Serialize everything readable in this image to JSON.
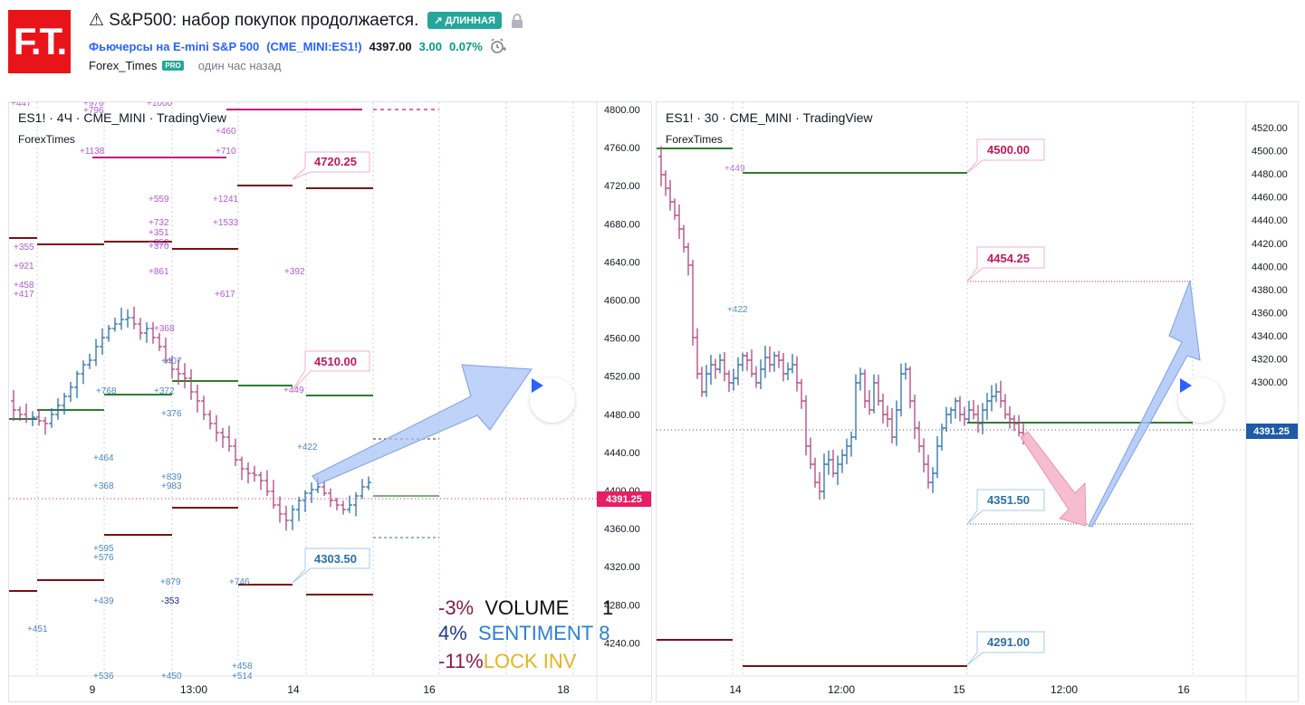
{
  "header": {
    "logo_text": "F.T.",
    "title": "⚠ S&P500: набор покупок продолжается.",
    "badge": "↗ ДЛИННАЯ",
    "symbol_name": "Фьючерсы на E-mini S&P 500",
    "symbol_code": "(CME_MINI:ES1!)",
    "price": "4397.00",
    "change": "3.00",
    "change_pct": "0.07%",
    "author": "Forex_Times",
    "author_badge": "PRO",
    "published": "один час назад"
  },
  "left_chart": {
    "title": "ES1! · 4Ч · CME_MINI · TradingView",
    "subtitle": "ForexTimes",
    "y_ticks": [
      "4800.00",
      "4760.00",
      "4720.00",
      "4680.00",
      "4640.00",
      "4600.00",
      "4560.00",
      "4520.00",
      "4480.00",
      "4440.00",
      "4400.00",
      "4360.00",
      "4320.00",
      "4280.00",
      "4240.00"
    ],
    "x_ticks": [
      "9",
      "13:00",
      "14",
      "16",
      "18"
    ],
    "price_tag": "4391.25",
    "callouts": [
      "4720.25",
      "4510.00",
      "4303.50"
    ],
    "legend": [
      {
        "pct": "-3%",
        "label": "VOLUME",
        "extra": "1"
      },
      {
        "pct": "4%",
        "label": "SENTIMENT",
        "extra": "8"
      },
      {
        "pct": "-11%",
        "label": "LOCK INV",
        "extra": ""
      }
    ],
    "annotations_pink": [
      "+447",
      "+976",
      "+796",
      "+1000",
      "+460",
      "+1138",
      "+710",
      "+559",
      "+1241",
      "+732",
      "+351",
      "+352",
      "+370",
      "+1533",
      "+355",
      "+921",
      "+861",
      "+392",
      "+458",
      "+417",
      "+617",
      "+368",
      "+449"
    ],
    "annotations_blue": [
      "+407",
      "+768",
      "+372",
      "+376",
      "+422",
      "+464",
      "+839",
      "+983",
      "+368",
      "+595",
      "+576",
      "+879",
      "+746",
      "+439",
      "-353",
      "+451",
      "+458",
      "+514",
      "+536",
      "+450"
    ]
  },
  "right_chart": {
    "title": "ES1! · 30 · CME_MINI · TradingView",
    "subtitle": "ForexTimes",
    "y_ticks": [
      "4520.00",
      "4500.00",
      "4480.00",
      "4460.00",
      "4440.00",
      "4420.00",
      "4400.00",
      "4380.00",
      "4360.00",
      "4340.00",
      "4320.00",
      "4300.00"
    ],
    "x_ticks": [
      "14",
      "12:00",
      "15",
      "12:00",
      "16"
    ],
    "price_tag": "4391.25",
    "callouts": [
      "4500.00",
      "4454.25",
      "4351.50",
      "4291.00"
    ],
    "annotations": [
      "+449",
      "+422"
    ]
  },
  "colors": {
    "bull": "#2a6fa8",
    "bear": "#b0457e",
    "support": "#2e7d32",
    "resistance": "#7b1010",
    "magenta": "#c2187a",
    "tag": "#e91e63",
    "teal": "#26a69a"
  }
}
